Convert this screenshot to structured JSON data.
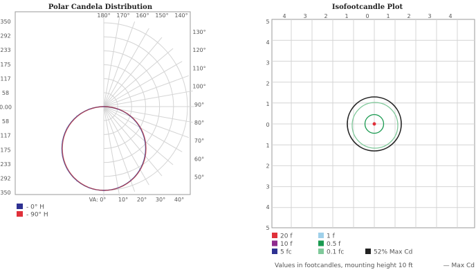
{
  "chart_data": [
    {
      "type": "polar",
      "title": "Polar Candela Distribution",
      "radial_tick_labels": [
        "350",
        "292",
        "233",
        "175",
        "117",
        "58",
        "0.00",
        "58",
        "117",
        "175",
        "233",
        "292",
        "350"
      ],
      "angle_labels_top": [
        "180°",
        "170°",
        "160°",
        "150°",
        "140°"
      ],
      "angle_labels_right": [
        "130°",
        "120°",
        "110°",
        "100°",
        "90°",
        "80°",
        "70°",
        "60°",
        "50°"
      ],
      "angle_labels_bottom": [
        "VA: 0°",
        "10°",
        "20°",
        "30°",
        "40°"
      ],
      "rmax": 350,
      "series": [
        {
          "name": "- 0° H",
          "color": "#1f3a93",
          "shape": "circle",
          "center_offset_cd": 175,
          "radius_cd": 175
        },
        {
          "name": "- 90° H",
          "color": "#d62a2a",
          "shape": "circle",
          "center_offset_cd": 175,
          "radius_cd": 175
        }
      ],
      "legend": [
        {
          "label": "- 0° H",
          "color": "#2e3192"
        },
        {
          "label": "- 90° H",
          "color": "#e0303a"
        }
      ]
    },
    {
      "type": "contour",
      "title": "Isofootcandle Plot",
      "x_tick_labels": [
        "4",
        "3",
        "2",
        "1",
        "0",
        "1",
        "2",
        "3",
        "4"
      ],
      "y_tick_labels": [
        "5",
        "4",
        "3",
        "2",
        "1",
        "0",
        "1",
        "2",
        "3",
        "4",
        "5"
      ],
      "xlim": [
        -4.5,
        4.5
      ],
      "ylim": [
        -5,
        5
      ],
      "contours": [
        {
          "label": "52% Max Cd",
          "color": "#222222",
          "radius": 1.3
        },
        {
          "label": "0.1 fc",
          "color": "#7fc99a",
          "radius": 1.1
        },
        {
          "label": "0.5 f",
          "color": "#1a9a50",
          "radius": 0.45
        },
        {
          "label": "20 f",
          "color": "#e0303a",
          "radius": 0.06
        }
      ],
      "legend": [
        {
          "label": "20 f",
          "color": "#e0303a"
        },
        {
          "label": "1 f",
          "color": "#9fd0ea"
        },
        {
          "label": "10 f",
          "color": "#8e2a8e"
        },
        {
          "label": "0.5 f",
          "color": "#1a9a50"
        },
        {
          "label": "5 fc",
          "color": "#2e3192"
        },
        {
          "label": "0.1 fc",
          "color": "#7fc99a"
        },
        {
          "label": "52% Max Cd",
          "color": "#222222"
        }
      ],
      "footer": "Values in footcandles, mounting height 10 ft",
      "footer_right": "— Max Cd"
    }
  ]
}
